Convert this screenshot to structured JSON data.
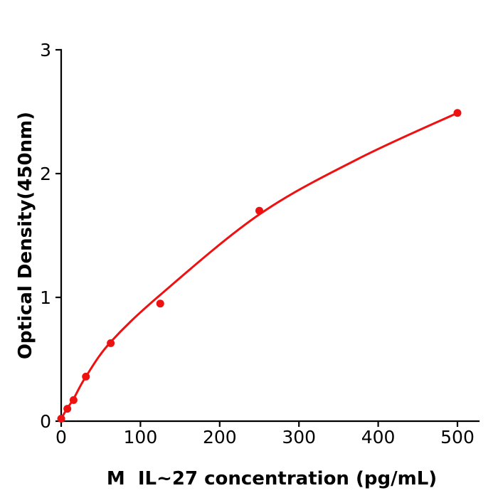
{
  "figure": {
    "background": "#ffffff",
    "axis_color": "#000000",
    "accent_red": "#ee1111"
  },
  "chart_data": {
    "type": "scatter",
    "title": "",
    "xlabel": "M  IL~27 concentration (pg/mL)",
    "ylabel": "Optical Density(450nm)",
    "xlim": [
      0,
      527
    ],
    "ylim": [
      0,
      3
    ],
    "xticks": [
      0,
      100,
      200,
      300,
      400,
      500
    ],
    "yticks": [
      0,
      1,
      2,
      3
    ],
    "grid": false,
    "legend": "none",
    "series": [
      {
        "name": "standard-points",
        "type": "scatter",
        "color": "#ee1111",
        "marker_radius": 5.5,
        "x": [
          0,
          7.8,
          15.6,
          31.2,
          62.5,
          125,
          250,
          500
        ],
        "y": [
          0.02,
          0.1,
          0.17,
          0.36,
          0.63,
          0.95,
          1.7,
          2.49
        ]
      },
      {
        "name": "fitted-curve",
        "type": "line",
        "color": "#ee1111",
        "stroke_width": 3,
        "x": [
          0,
          7.8,
          15.6,
          31.2,
          62.5,
          125,
          250,
          375,
          500
        ],
        "y": [
          0.02,
          0.105,
          0.18,
          0.36,
          0.64,
          1.02,
          1.67,
          2.12,
          2.49
        ]
      }
    ]
  }
}
